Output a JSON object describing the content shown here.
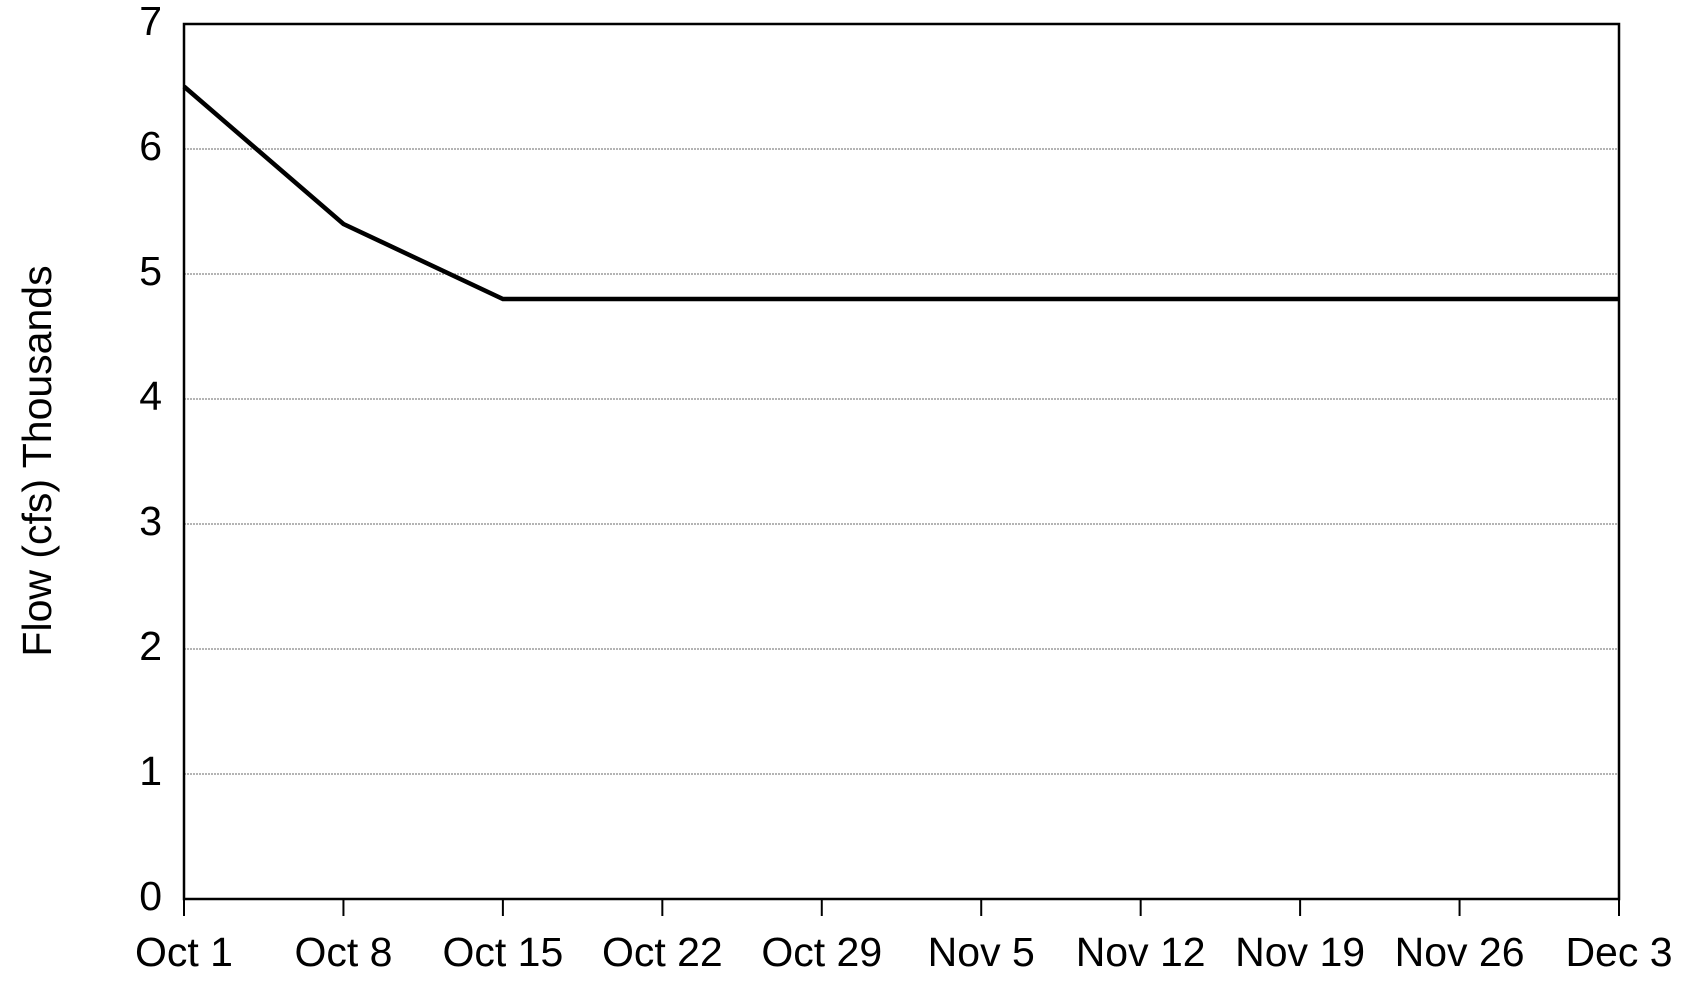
{
  "chart_data": {
    "type": "line",
    "y_label": "Flow (cfs) Thousands",
    "categories": [
      "Oct 1",
      "Oct 8",
      "Oct 15",
      "Oct 22",
      "Oct 29",
      "Nov 5",
      "Nov 12",
      "Nov 19",
      "Nov 26",
      "Dec 3"
    ],
    "values": [
      6.5,
      5.4,
      4.8,
      4.8,
      4.8,
      4.8,
      4.8,
      4.8,
      4.8,
      4.8
    ],
    "color": "#000000",
    "ylim": [
      0,
      7
    ],
    "yticks": [
      0,
      1,
      2,
      3,
      4,
      5,
      6,
      7
    ],
    "grid": true
  }
}
